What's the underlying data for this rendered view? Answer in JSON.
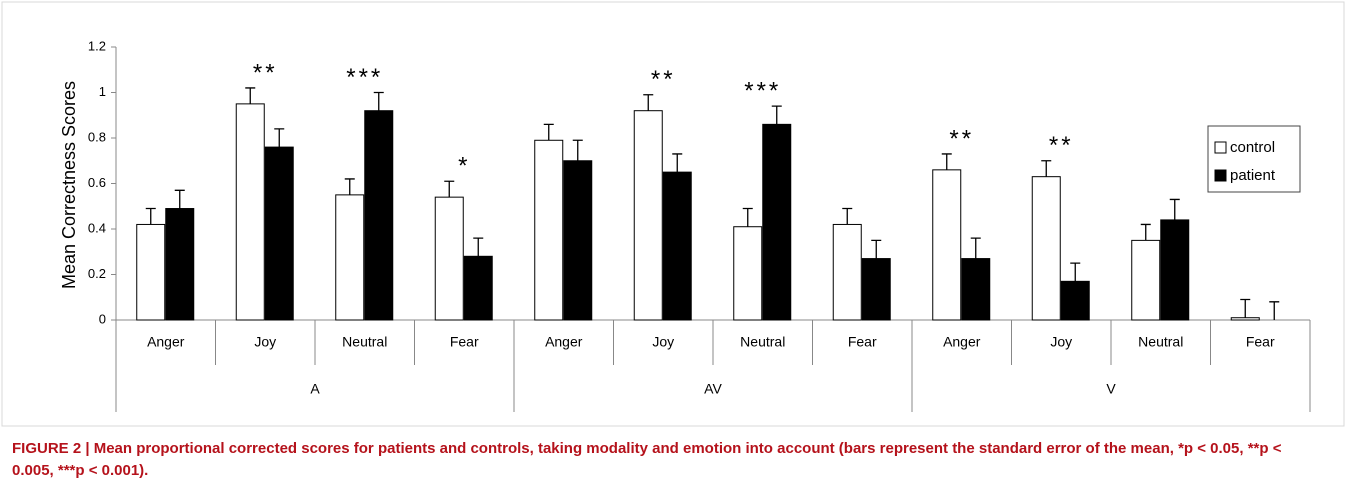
{
  "chart_data": {
    "type": "bar",
    "y_label": "Mean Correctness Scores",
    "groups": [
      "A",
      "AV",
      "V"
    ],
    "categories": [
      "Anger",
      "Joy",
      "Neutral",
      "Fear",
      "Anger",
      "Joy",
      "Neutral",
      "Fear",
      "Anger",
      "Joy",
      "Neutral",
      "Fear"
    ],
    "series": [
      {
        "name": "control",
        "color": "#ffffff",
        "values": [
          0.42,
          0.95,
          0.55,
          0.54,
          0.79,
          0.92,
          0.41,
          0.42,
          0.66,
          0.63,
          0.35,
          0.01
        ],
        "errors": [
          0.07,
          0.07,
          0.07,
          0.07,
          0.07,
          0.07,
          0.08,
          0.07,
          0.07,
          0.07,
          0.07,
          0.08
        ]
      },
      {
        "name": "patient",
        "color": "#000000",
        "values": [
          0.49,
          0.76,
          0.92,
          0.28,
          0.7,
          0.65,
          0.86,
          0.27,
          0.27,
          0.17,
          0.44,
          0
        ],
        "errors": [
          0.08,
          0.08,
          0.08,
          0.08,
          0.09,
          0.08,
          0.08,
          0.08,
          0.09,
          0.08,
          0.09,
          0.08
        ]
      }
    ],
    "annotations": [
      null,
      "**",
      "***",
      "*",
      null,
      "**",
      "***",
      null,
      "**",
      "**",
      null,
      null
    ],
    "ylim": [
      0,
      1.2
    ],
    "yticks": [
      0,
      0.2,
      0.4,
      0.6,
      0.8,
      1,
      1.2
    ],
    "legend": "right",
    "caption": "FIGURE 2 | Mean proportional corrected scores for patients and controls, taking modality and emotion into account (bars represent the standard error of the mean, *p < 0.05, **p < 0.005, ***p < 0.001)."
  }
}
